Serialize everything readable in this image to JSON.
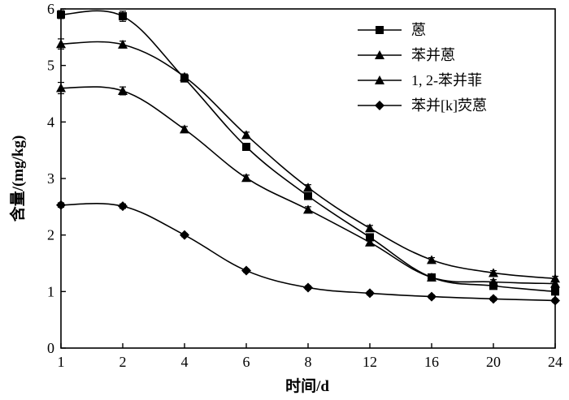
{
  "chart_data": {
    "type": "line",
    "title": "",
    "xlabel": "时间/d",
    "ylabel": "含量/(mg/kg)",
    "categories": [
      "1",
      "2",
      "4",
      "6",
      "8",
      "12",
      "16",
      "20",
      "24"
    ],
    "ylim": [
      0,
      6
    ],
    "yticks": [
      "0",
      "1",
      "2",
      "3",
      "4",
      "5",
      "6"
    ],
    "grid": false,
    "legend_position": "top-right",
    "series": [
      {
        "name": "蒽",
        "marker": "square",
        "values": [
          5.9,
          5.87,
          4.77,
          3.56,
          2.69,
          1.96,
          1.25,
          1.1,
          1.0
        ],
        "errors": [
          0.07,
          0.09,
          0.05,
          0.05,
          0.05,
          0.05,
          0.04,
          0.04,
          0.04
        ]
      },
      {
        "name": "苯并蒽",
        "marker": "triangle",
        "values": [
          5.38,
          5.37,
          4.8,
          3.77,
          2.84,
          2.12,
          1.56,
          1.33,
          1.23
        ],
        "errors": [
          0.09,
          0.06,
          0.05,
          0.05,
          0.05,
          0.05,
          0.04,
          0.04,
          0.04
        ]
      },
      {
        "name": "1, 2-苯并菲",
        "marker": "triangle",
        "values": [
          4.6,
          4.55,
          3.87,
          3.01,
          2.45,
          1.87,
          1.25,
          1.17,
          1.14
        ],
        "errors": [
          0.1,
          0.07,
          0.05,
          0.05,
          0.05,
          0.05,
          0.04,
          0.04,
          0.04
        ]
      },
      {
        "name": "苯并[k]荧蒽",
        "marker": "diamond",
        "values": [
          2.53,
          2.51,
          2.0,
          1.37,
          1.07,
          0.97,
          0.91,
          0.87,
          0.84
        ],
        "errors": [
          0.04,
          0.04,
          0.03,
          0.03,
          0.03,
          0.03,
          0.03,
          0.03,
          0.03
        ]
      }
    ]
  }
}
